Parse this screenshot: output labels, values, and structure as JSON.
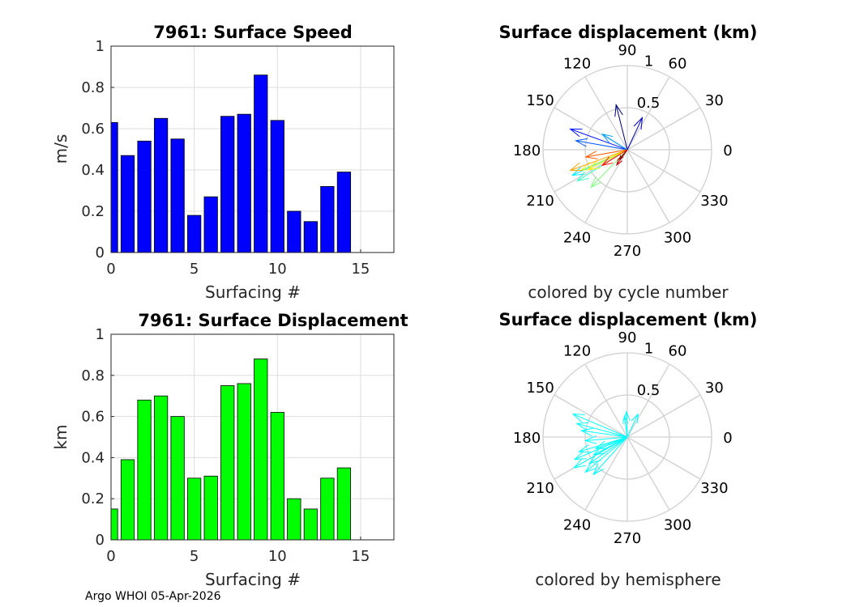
{
  "footer": "Argo WHOI 05-Apr-2026",
  "chart_data": [
    {
      "type": "bar",
      "title": "7961: Surface Speed",
      "xlabel": "Surfacing #",
      "ylabel": "m/s",
      "xlim": [
        0,
        17
      ],
      "ylim": [
        0,
        1
      ],
      "xticks": [
        "0",
        "5",
        "10",
        "15"
      ],
      "yticks": [
        "0",
        "0.2",
        "0.4",
        "0.6",
        "0.8",
        "1"
      ],
      "grid": true,
      "bar_color": "#0000ff",
      "x": [
        0,
        1,
        2,
        3,
        4,
        5,
        6,
        7,
        8,
        9,
        10,
        11,
        12,
        13,
        14
      ],
      "values": [
        0.63,
        0.47,
        0.54,
        0.65,
        0.55,
        0.18,
        0.27,
        0.66,
        0.67,
        0.86,
        0.64,
        0.2,
        0.15,
        0.32,
        0.39
      ]
    },
    {
      "type": "bar",
      "title": "7961: Surface Displacement",
      "xlabel": "Surfacing #",
      "ylabel": "km",
      "xlim": [
        0,
        17
      ],
      "ylim": [
        0,
        1
      ],
      "xticks": [
        "0",
        "5",
        "10",
        "15"
      ],
      "yticks": [
        "0",
        "0.2",
        "0.4",
        "0.6",
        "0.8",
        "1"
      ],
      "grid": true,
      "bar_color": "#00ff00",
      "x": [
        0,
        1,
        2,
        3,
        4,
        5,
        6,
        7,
        8,
        9,
        10,
        11,
        12,
        13,
        14
      ],
      "values": [
        0.15,
        0.39,
        0.68,
        0.7,
        0.6,
        0.3,
        0.31,
        0.75,
        0.76,
        0.88,
        0.62,
        0.2,
        0.15,
        0.3,
        0.35
      ]
    },
    {
      "type": "polar",
      "subtype": "compass",
      "title": "Surface displacement (km)",
      "caption": "colored by cycle number",
      "rmax": 1,
      "r_ticks": [
        "0.5",
        "1"
      ],
      "theta_ticks": [
        "0",
        "30",
        "60",
        "90",
        "120",
        "150",
        "180",
        "210",
        "240",
        "270",
        "300",
        "330"
      ],
      "colormap": "jet",
      "vectors": [
        {
          "angle_deg": 104,
          "r": 0.55
        },
        {
          "angle_deg": 65,
          "r": 0.42
        },
        {
          "angle_deg": 160,
          "r": 0.72
        },
        {
          "angle_deg": 170,
          "r": 0.62
        },
        {
          "angle_deg": 148,
          "r": 0.35
        },
        {
          "angle_deg": 205,
          "r": 0.72
        },
        {
          "angle_deg": 212,
          "r": 0.7
        },
        {
          "angle_deg": 226,
          "r": 0.62
        },
        {
          "angle_deg": 204,
          "r": 0.6
        },
        {
          "angle_deg": 207,
          "r": 0.52
        },
        {
          "angle_deg": 200,
          "r": 0.72
        },
        {
          "angle_deg": 190,
          "r": 0.5
        },
        {
          "angle_deg": 212,
          "r": 0.35
        },
        {
          "angle_deg": 235,
          "r": 0.22
        },
        {
          "angle_deg": 230,
          "r": 0.15
        }
      ]
    },
    {
      "type": "polar",
      "subtype": "compass",
      "title": "Surface displacement (km)",
      "caption": "colored by hemisphere",
      "rmax": 1,
      "r_ticks": [
        "0.5",
        "1"
      ],
      "theta_ticks": [
        "0",
        "30",
        "60",
        "90",
        "120",
        "150",
        "180",
        "210",
        "240",
        "270",
        "300",
        "330"
      ],
      "vector_color": "#00ffff",
      "vectors": [
        {
          "angle_deg": 92,
          "r": 0.3
        },
        {
          "angle_deg": 98,
          "r": 0.25
        },
        {
          "angle_deg": 65,
          "r": 0.3
        },
        {
          "angle_deg": 157,
          "r": 0.7
        },
        {
          "angle_deg": 165,
          "r": 0.62
        },
        {
          "angle_deg": 172,
          "r": 0.55
        },
        {
          "angle_deg": 185,
          "r": 0.5
        },
        {
          "angle_deg": 197,
          "r": 0.6
        },
        {
          "angle_deg": 203,
          "r": 0.68
        },
        {
          "angle_deg": 210,
          "r": 0.73
        },
        {
          "angle_deg": 220,
          "r": 0.65
        },
        {
          "angle_deg": 228,
          "r": 0.6
        },
        {
          "angle_deg": 215,
          "r": 0.55
        },
        {
          "angle_deg": 208,
          "r": 0.45
        },
        {
          "angle_deg": 200,
          "r": 0.4
        }
      ]
    }
  ]
}
